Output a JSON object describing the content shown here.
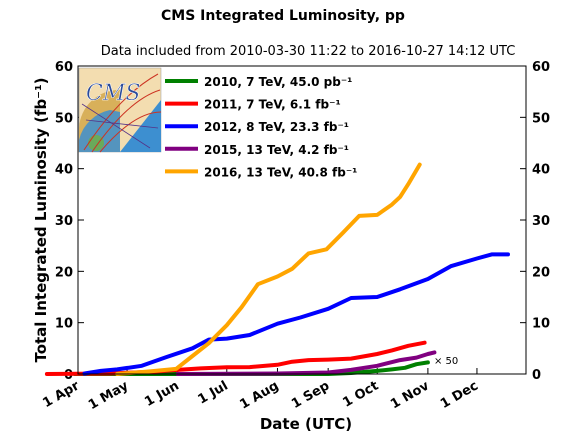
{
  "chart_data": {
    "type": "line",
    "title": "CMS Integrated Luminosity, pp",
    "subtitle": "Data included from 2010-03-30 11:22 to 2016-10-27 14:12 UTC",
    "xlabel": "Date (UTC)",
    "ylabel": "Total Integrated Luminosity (fb⁻¹)",
    "x_ticks": [
      "1 Apr",
      "1 May",
      "1 Jun",
      "1 Jul",
      "1 Aug",
      "1 Sep",
      "1 Oct",
      "1 Nov",
      "1 Dec"
    ],
    "x_range": [
      "1 Apr",
      "31 Dec"
    ],
    "ylim": [
      0,
      60
    ],
    "y_ticks": [
      0,
      10,
      20,
      30,
      40,
      50,
      60
    ],
    "right_y_ticks": [
      0,
      10,
      20,
      30,
      40,
      50,
      60
    ],
    "legend_position": "top-left",
    "annotation": "× 50",
    "series": [
      {
        "name": "2010, 7 TeV, 45.0 pb⁻¹",
        "color": "#008000",
        "scale_factor": 50,
        "points": [
          [
            "2010-03-30",
            0.0
          ],
          [
            "2010-09-01",
            0.0
          ],
          [
            "2010-09-15",
            0.2
          ],
          [
            "2010-10-01",
            0.6
          ],
          [
            "2010-10-10",
            0.9
          ],
          [
            "2010-10-18",
            1.2
          ],
          [
            "2010-10-25",
            1.9
          ],
          [
            "2010-11-01",
            2.25
          ]
        ]
      },
      {
        "name": "2011, 7 TeV, 6.1 fb⁻¹",
        "color": "#ff0000",
        "points": [
          [
            "2011-03-13",
            0.0
          ],
          [
            "2011-04-20",
            0.1
          ],
          [
            "2011-05-15",
            0.4
          ],
          [
            "2011-06-01",
            0.8
          ],
          [
            "2011-06-15",
            1.1
          ],
          [
            "2011-07-01",
            1.3
          ],
          [
            "2011-07-15",
            1.35
          ],
          [
            "2011-08-01",
            1.8
          ],
          [
            "2011-08-10",
            2.4
          ],
          [
            "2011-08-20",
            2.7
          ],
          [
            "2011-09-01",
            2.8
          ],
          [
            "2011-09-15",
            3.0
          ],
          [
            "2011-10-01",
            3.9
          ],
          [
            "2011-10-10",
            4.6
          ],
          [
            "2011-10-20",
            5.5
          ],
          [
            "2011-10-30",
            6.1
          ]
        ]
      },
      {
        "name": "2012, 8 TeV, 23.3 fb⁻¹",
        "color": "#0000ff",
        "points": [
          [
            "2012-04-05",
            0.1
          ],
          [
            "2012-04-15",
            0.6
          ],
          [
            "2012-04-25",
            0.9
          ],
          [
            "2012-05-10",
            1.6
          ],
          [
            "2012-05-25",
            3.3
          ],
          [
            "2012-06-10",
            5.0
          ],
          [
            "2012-06-20",
            6.7
          ],
          [
            "2012-07-01",
            6.9
          ],
          [
            "2012-07-15",
            7.6
          ],
          [
            "2012-08-01",
            9.8
          ],
          [
            "2012-08-15",
            11.0
          ],
          [
            "2012-09-01",
            12.7
          ],
          [
            "2012-09-15",
            14.8
          ],
          [
            "2012-10-01",
            15.0
          ],
          [
            "2012-10-15",
            16.5
          ],
          [
            "2012-11-01",
            18.5
          ],
          [
            "2012-11-15",
            21.0
          ],
          [
            "2012-12-01",
            22.5
          ],
          [
            "2012-12-10",
            23.3
          ],
          [
            "2012-12-20",
            23.3
          ]
        ]
      },
      {
        "name": "2015, 13 TeV, 4.2 fb⁻¹",
        "color": "#800080",
        "points": [
          [
            "2015-06-01",
            0.0
          ],
          [
            "2015-08-01",
            0.1
          ],
          [
            "2015-09-01",
            0.3
          ],
          [
            "2015-09-15",
            0.8
          ],
          [
            "2015-10-01",
            1.6
          ],
          [
            "2015-10-15",
            2.7
          ],
          [
            "2015-10-25",
            3.2
          ],
          [
            "2015-11-01",
            3.9
          ],
          [
            "2015-11-05",
            4.2
          ]
        ]
      },
      {
        "name": "2016, 13 TeV, 40.8 fb⁻¹",
        "color": "#ffa500",
        "points": [
          [
            "2016-04-25",
            0.0
          ],
          [
            "2016-05-15",
            0.5
          ],
          [
            "2016-05-31",
            1.0
          ],
          [
            "2016-06-10",
            3.5
          ],
          [
            "2016-06-20",
            6.0
          ],
          [
            "2016-07-01",
            9.5
          ],
          [
            "2016-07-10",
            13.0
          ],
          [
            "2016-07-20",
            17.5
          ],
          [
            "2016-08-01",
            19.0
          ],
          [
            "2016-08-10",
            20.5
          ],
          [
            "2016-08-20",
            23.5
          ],
          [
            "2016-08-31",
            24.3
          ],
          [
            "2016-09-10",
            27.5
          ],
          [
            "2016-09-20",
            30.8
          ],
          [
            "2016-10-01",
            31.0
          ],
          [
            "2016-10-10",
            33.0
          ],
          [
            "2016-10-15",
            34.5
          ],
          [
            "2016-10-20",
            37.0
          ],
          [
            "2016-10-27",
            40.8
          ]
        ]
      }
    ]
  }
}
